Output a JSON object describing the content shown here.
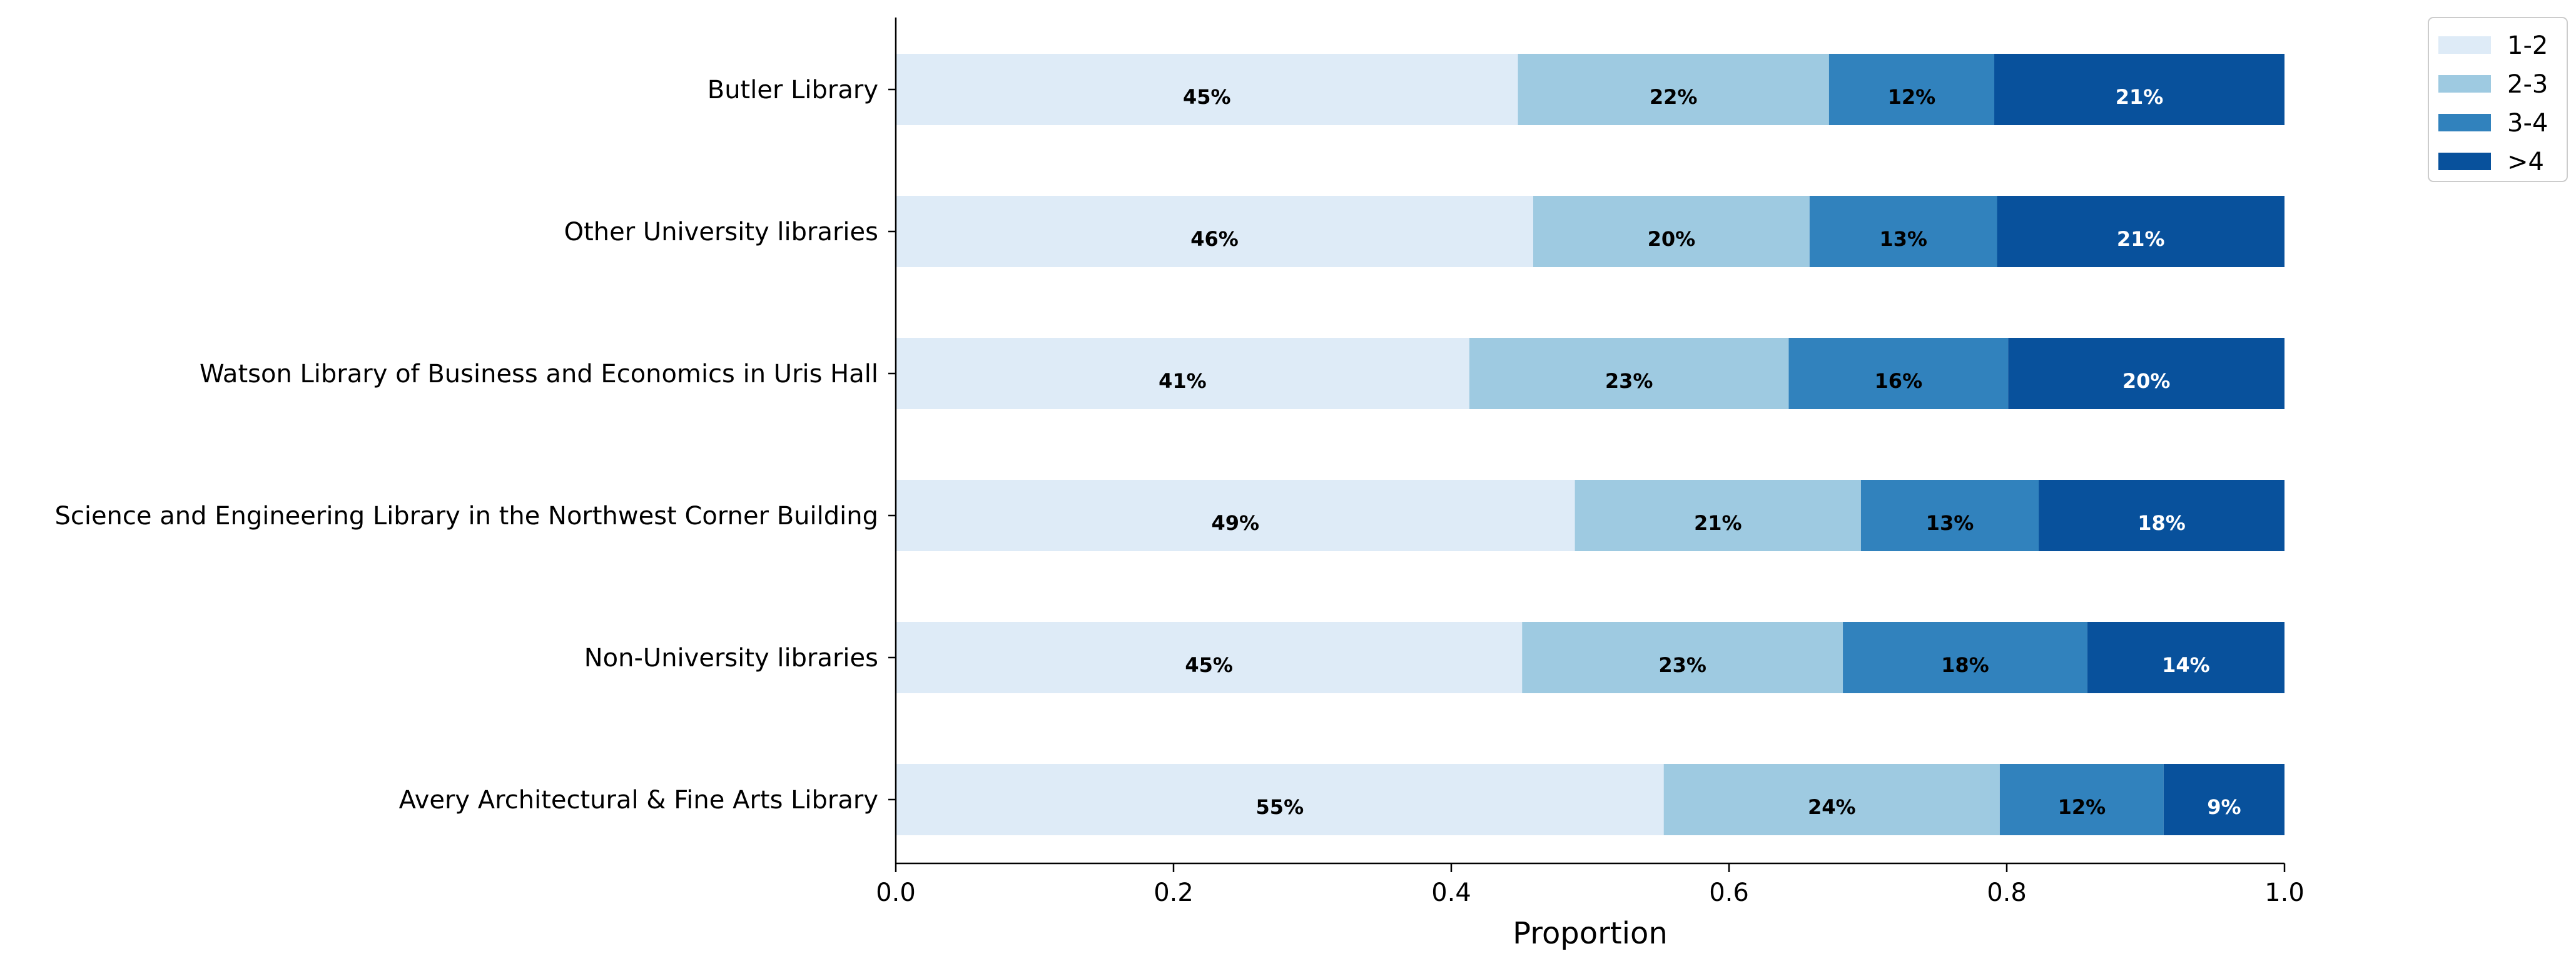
{
  "chart_data": {
    "type": "bar",
    "orientation": "horizontal",
    "stacked": true,
    "xlabel": "Proportion",
    "ylabel": "",
    "xlim": [
      0.0,
      1.0
    ],
    "xticks": [
      "0.0",
      "0.2",
      "0.4",
      "0.6",
      "0.8",
      "1.0"
    ],
    "categories": [
      "Butler Library",
      "Other University libraries",
      "Watson Library of Business and Economics in Uris Hall",
      "Science and Engineering Library in the Northwest Corner Building",
      "Non-University libraries",
      "Avery Architectural & Fine Arts Library"
    ],
    "series": [
      {
        "name": "1-2",
        "color": "#deebf7",
        "values": [
          0.448,
          0.459,
          0.413,
          0.489,
          0.451,
          0.553
        ],
        "labels": [
          "45%",
          "46%",
          "41%",
          "49%",
          "45%",
          "55%"
        ],
        "label_color": "#000000"
      },
      {
        "name": "2-3",
        "color": "#9ecae1",
        "values": [
          0.224,
          0.199,
          0.23,
          0.206,
          0.231,
          0.242
        ],
        "labels": [
          "22%",
          "20%",
          "23%",
          "21%",
          "23%",
          "24%"
        ],
        "label_color": "#000000"
      },
      {
        "name": "3-4",
        "color": "#3182bd",
        "values": [
          0.119,
          0.135,
          0.158,
          0.128,
          0.176,
          0.118
        ],
        "labels": [
          "12%",
          "13%",
          "16%",
          "13%",
          "18%",
          "12%"
        ],
        "label_color": "#000000"
      },
      {
        "name": ">4",
        "color": "#08519c",
        "values": [
          0.209,
          0.207,
          0.199,
          0.177,
          0.142,
          0.087
        ],
        "labels": [
          "21%",
          "21%",
          "20%",
          "18%",
          "14%",
          "9%"
        ],
        "label_color": "#ffffff"
      }
    ],
    "legend_position": "top-right",
    "grid": false
  }
}
